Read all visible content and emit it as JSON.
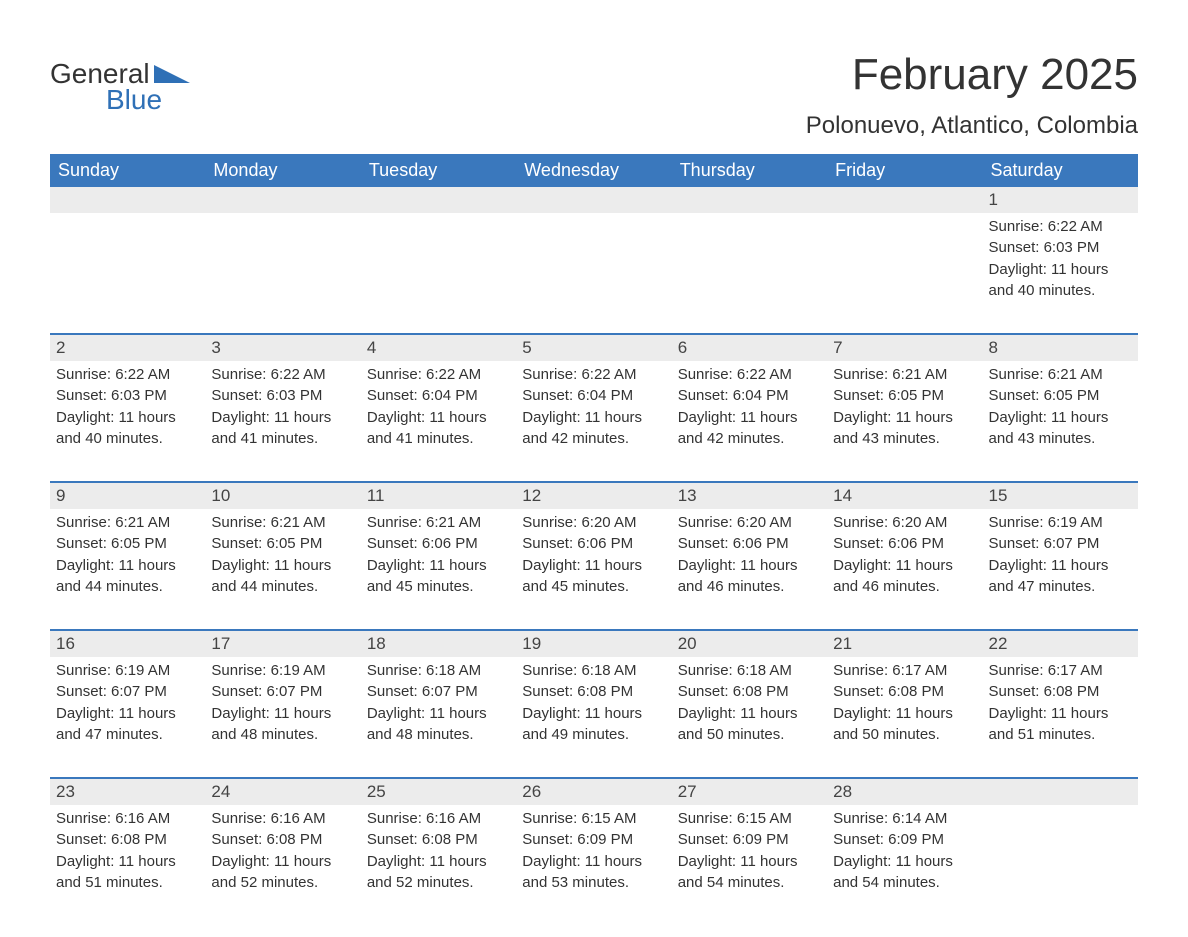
{
  "brand": {
    "word1": "General",
    "word2": "Blue",
    "accent_color": "#2f70b6"
  },
  "title": "February 2025",
  "location": "Polonuevo, Atlantico, Colombia",
  "colors": {
    "header_bg": "#3a78bd",
    "header_text": "#ffffff",
    "daynum_bg": "#ececec",
    "body_text": "#333333",
    "page_bg": "#ffffff",
    "week_border": "#3a78bd"
  },
  "fonts": {
    "title_size": 44,
    "location_size": 24,
    "dayheader_size": 18,
    "body_size": 15
  },
  "day_names": [
    "Sunday",
    "Monday",
    "Tuesday",
    "Wednesday",
    "Thursday",
    "Friday",
    "Saturday"
  ],
  "labels": {
    "sunrise": "Sunrise:",
    "sunset": "Sunset:",
    "daylight_prefix": "Daylight:"
  },
  "weeks": [
    [
      {
        "blank": true
      },
      {
        "blank": true
      },
      {
        "blank": true
      },
      {
        "blank": true
      },
      {
        "blank": true
      },
      {
        "blank": true
      },
      {
        "day": "1",
        "sunrise": "6:22 AM",
        "sunset": "6:03 PM",
        "daylight1": "Daylight: 11 hours",
        "daylight2": "and 40 minutes."
      }
    ],
    [
      {
        "day": "2",
        "sunrise": "6:22 AM",
        "sunset": "6:03 PM",
        "daylight1": "Daylight: 11 hours",
        "daylight2": "and 40 minutes."
      },
      {
        "day": "3",
        "sunrise": "6:22 AM",
        "sunset": "6:03 PM",
        "daylight1": "Daylight: 11 hours",
        "daylight2": "and 41 minutes."
      },
      {
        "day": "4",
        "sunrise": "6:22 AM",
        "sunset": "6:04 PM",
        "daylight1": "Daylight: 11 hours",
        "daylight2": "and 41 minutes."
      },
      {
        "day": "5",
        "sunrise": "6:22 AM",
        "sunset": "6:04 PM",
        "daylight1": "Daylight: 11 hours",
        "daylight2": "and 42 minutes."
      },
      {
        "day": "6",
        "sunrise": "6:22 AM",
        "sunset": "6:04 PM",
        "daylight1": "Daylight: 11 hours",
        "daylight2": "and 42 minutes."
      },
      {
        "day": "7",
        "sunrise": "6:21 AM",
        "sunset": "6:05 PM",
        "daylight1": "Daylight: 11 hours",
        "daylight2": "and 43 minutes."
      },
      {
        "day": "8",
        "sunrise": "6:21 AM",
        "sunset": "6:05 PM",
        "daylight1": "Daylight: 11 hours",
        "daylight2": "and 43 minutes."
      }
    ],
    [
      {
        "day": "9",
        "sunrise": "6:21 AM",
        "sunset": "6:05 PM",
        "daylight1": "Daylight: 11 hours",
        "daylight2": "and 44 minutes."
      },
      {
        "day": "10",
        "sunrise": "6:21 AM",
        "sunset": "6:05 PM",
        "daylight1": "Daylight: 11 hours",
        "daylight2": "and 44 minutes."
      },
      {
        "day": "11",
        "sunrise": "6:21 AM",
        "sunset": "6:06 PM",
        "daylight1": "Daylight: 11 hours",
        "daylight2": "and 45 minutes."
      },
      {
        "day": "12",
        "sunrise": "6:20 AM",
        "sunset": "6:06 PM",
        "daylight1": "Daylight: 11 hours",
        "daylight2": "and 45 minutes."
      },
      {
        "day": "13",
        "sunrise": "6:20 AM",
        "sunset": "6:06 PM",
        "daylight1": "Daylight: 11 hours",
        "daylight2": "and 46 minutes."
      },
      {
        "day": "14",
        "sunrise": "6:20 AM",
        "sunset": "6:06 PM",
        "daylight1": "Daylight: 11 hours",
        "daylight2": "and 46 minutes."
      },
      {
        "day": "15",
        "sunrise": "6:19 AM",
        "sunset": "6:07 PM",
        "daylight1": "Daylight: 11 hours",
        "daylight2": "and 47 minutes."
      }
    ],
    [
      {
        "day": "16",
        "sunrise": "6:19 AM",
        "sunset": "6:07 PM",
        "daylight1": "Daylight: 11 hours",
        "daylight2": "and 47 minutes."
      },
      {
        "day": "17",
        "sunrise": "6:19 AM",
        "sunset": "6:07 PM",
        "daylight1": "Daylight: 11 hours",
        "daylight2": "and 48 minutes."
      },
      {
        "day": "18",
        "sunrise": "6:18 AM",
        "sunset": "6:07 PM",
        "daylight1": "Daylight: 11 hours",
        "daylight2": "and 48 minutes."
      },
      {
        "day": "19",
        "sunrise": "6:18 AM",
        "sunset": "6:08 PM",
        "daylight1": "Daylight: 11 hours",
        "daylight2": "and 49 minutes."
      },
      {
        "day": "20",
        "sunrise": "6:18 AM",
        "sunset": "6:08 PM",
        "daylight1": "Daylight: 11 hours",
        "daylight2": "and 50 minutes."
      },
      {
        "day": "21",
        "sunrise": "6:17 AM",
        "sunset": "6:08 PM",
        "daylight1": "Daylight: 11 hours",
        "daylight2": "and 50 minutes."
      },
      {
        "day": "22",
        "sunrise": "6:17 AM",
        "sunset": "6:08 PM",
        "daylight1": "Daylight: 11 hours",
        "daylight2": "and 51 minutes."
      }
    ],
    [
      {
        "day": "23",
        "sunrise": "6:16 AM",
        "sunset": "6:08 PM",
        "daylight1": "Daylight: 11 hours",
        "daylight2": "and 51 minutes."
      },
      {
        "day": "24",
        "sunrise": "6:16 AM",
        "sunset": "6:08 PM",
        "daylight1": "Daylight: 11 hours",
        "daylight2": "and 52 minutes."
      },
      {
        "day": "25",
        "sunrise": "6:16 AM",
        "sunset": "6:08 PM",
        "daylight1": "Daylight: 11 hours",
        "daylight2": "and 52 minutes."
      },
      {
        "day": "26",
        "sunrise": "6:15 AM",
        "sunset": "6:09 PM",
        "daylight1": "Daylight: 11 hours",
        "daylight2": "and 53 minutes."
      },
      {
        "day": "27",
        "sunrise": "6:15 AM",
        "sunset": "6:09 PM",
        "daylight1": "Daylight: 11 hours",
        "daylight2": "and 54 minutes."
      },
      {
        "day": "28",
        "sunrise": "6:14 AM",
        "sunset": "6:09 PM",
        "daylight1": "Daylight: 11 hours",
        "daylight2": "and 54 minutes."
      },
      {
        "blank": true
      }
    ]
  ]
}
